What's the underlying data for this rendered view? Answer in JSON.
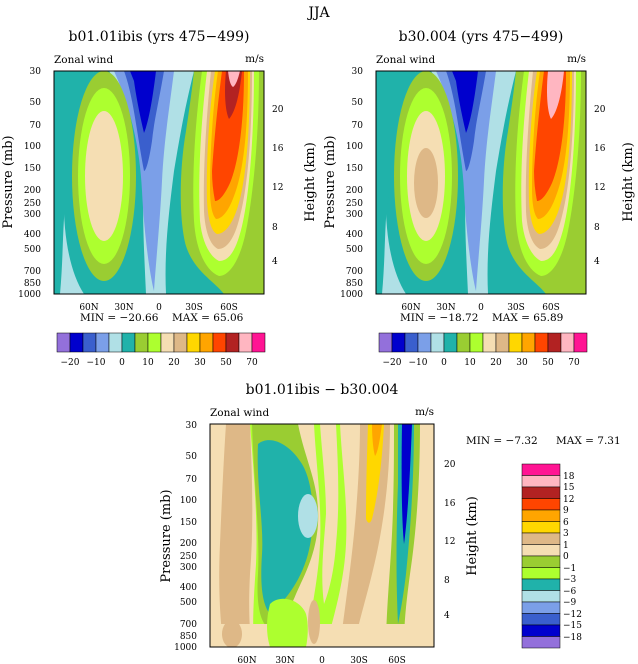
{
  "figure": {
    "title": "JJA",
    "palette": {
      "abs": [
        "#9370db",
        "#0000cd",
        "#3a5fcd",
        "#7b9fe8",
        "#b0e0e6",
        "#20b2aa",
        "#9acd32",
        "#adff2f",
        "#f5deb3",
        "#deb887",
        "#ffd700",
        "#ffa500",
        "#ff4500",
        "#b22222",
        "#ffb6c1",
        "#ff1493"
      ],
      "diff": [
        "#9370db",
        "#0000cd",
        "#3a5fcd",
        "#7b9fe8",
        "#b0e0e6",
        "#20b2aa",
        "#9acd32",
        "#adff2f",
        "#f5deb3",
        "#deb887",
        "#ffd700",
        "#ffa500",
        "#ff4500",
        "#b22222",
        "#ffb6c1",
        "#ff1493"
      ]
    }
  },
  "chart_data": [
    {
      "type": "heatmap",
      "title": "b01.01ibis (yrs 475−499)",
      "subtitle_left": "Zonal wind",
      "subtitle_right": "m/s",
      "ylabel": "Pressure (mb)",
      "ylabel_right": "Height (km)",
      "x_ticks": [
        "60N",
        "30N",
        "0",
        "30S",
        "60S"
      ],
      "x_tick_values": [
        60,
        30,
        0,
        -30,
        -60
      ],
      "y_ticks": [
        "30",
        "50",
        "70",
        "100",
        "150",
        "200",
        "250",
        "300",
        "400",
        "500",
        "700",
        "850",
        "1000"
      ],
      "y_tick_values": [
        30,
        50,
        70,
        100,
        150,
        200,
        250,
        300,
        400,
        500,
        700,
        850,
        1000
      ],
      "y_ticks_right": [
        "20",
        "16",
        "12",
        "8",
        "4"
      ],
      "xlim": [
        90,
        -90
      ],
      "ylim": [
        1000,
        30
      ],
      "y_scale": "log",
      "min_label": "MIN = −20.66",
      "min": -20.66,
      "max_label": "MAX = 65.06",
      "max": 65.06,
      "colorbar_labels": [
        "−20",
        "−10",
        "0",
        "10",
        "20",
        "30",
        "50",
        "70"
      ]
    },
    {
      "type": "heatmap",
      "title": "b30.004 (yrs 475−499)",
      "subtitle_left": "Zonal wind",
      "subtitle_right": "m/s",
      "ylabel": "Pressure (mb)",
      "ylabel_right": "Height (km)",
      "x_ticks": [
        "60N",
        "30N",
        "0",
        "30S",
        "60S"
      ],
      "x_tick_values": [
        60,
        30,
        0,
        -30,
        -60
      ],
      "y_ticks": [
        "30",
        "50",
        "70",
        "100",
        "150",
        "200",
        "250",
        "300",
        "400",
        "500",
        "700",
        "850",
        "1000"
      ],
      "y_tick_values": [
        30,
        50,
        70,
        100,
        150,
        200,
        250,
        300,
        400,
        500,
        700,
        850,
        1000
      ],
      "y_ticks_right": [
        "20",
        "16",
        "12",
        "8",
        "4"
      ],
      "xlim": [
        90,
        -90
      ],
      "ylim": [
        1000,
        30
      ],
      "y_scale": "log",
      "min_label": "MIN = −18.72",
      "min": -18.72,
      "max_label": "MAX = 65.89",
      "max": 65.89,
      "colorbar_labels": [
        "−20",
        "−10",
        "0",
        "10",
        "20",
        "30",
        "50",
        "70"
      ]
    },
    {
      "type": "heatmap",
      "title": "b01.01ibis − b30.004",
      "subtitle_left": "Zonal wind",
      "subtitle_right": "m/s",
      "ylabel": "Pressure (mb)",
      "ylabel_right": "Height (km)",
      "x_ticks": [
        "60N",
        "30N",
        "0",
        "30S",
        "60S"
      ],
      "x_tick_values": [
        60,
        30,
        0,
        -30,
        -60
      ],
      "y_ticks": [
        "30",
        "50",
        "70",
        "100",
        "150",
        "200",
        "250",
        "300",
        "400",
        "500",
        "700",
        "850",
        "1000"
      ],
      "y_tick_values": [
        30,
        50,
        70,
        100,
        150,
        200,
        250,
        300,
        400,
        500,
        700,
        850,
        1000
      ],
      "y_ticks_right": [
        "20",
        "16",
        "12",
        "8",
        "4"
      ],
      "xlim": [
        90,
        -90
      ],
      "ylim": [
        1000,
        30
      ],
      "y_scale": "log",
      "min_label": "MIN = −7.32",
      "min": -7.32,
      "max_label": "MAX = 7.31",
      "max": 7.31,
      "colorbar_labels": [
        "18",
        "15",
        "12",
        "9",
        "6",
        "3",
        "1",
        "0",
        "−1",
        "−3",
        "−6",
        "−9",
        "−12",
        "−15",
        "−18"
      ]
    }
  ]
}
